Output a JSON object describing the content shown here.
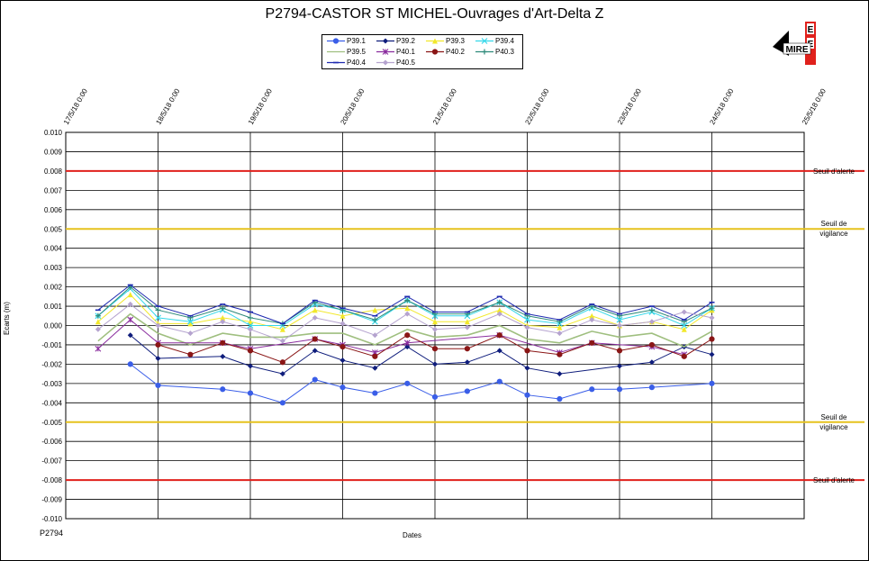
{
  "chart_data": {
    "type": "line",
    "title": "P2794-CASTOR ST MICHEL-Ouvrages d'Art-Delta Z",
    "xlabel": "Dates",
    "ylabel": "Ecarts (m)",
    "footer": "P2794",
    "ylim": [
      -0.01,
      0.01
    ],
    "y_ticks": [
      "0.010",
      "0.009",
      "0.008",
      "0.007",
      "0.006",
      "0.005",
      "0.004",
      "0.003",
      "0.002",
      "0.001",
      "0.000",
      "-0.001",
      "-0.002",
      "-0.003",
      "-0.004",
      "-0.005",
      "-0.006",
      "-0.007",
      "-0.008",
      "-0.009",
      "-0.010"
    ],
    "x_ticks": [
      "17/5/18 0:00",
      "18/5/18 0:00",
      "19/5/18 0:00",
      "20/5/18 0:00",
      "21/5/18 0:00",
      "22/5/18 0:00",
      "23/5/18 0:00",
      "24/5/18 0:00",
      "25/5/18 0:00"
    ],
    "xlim_days": [
      17,
      25
    ],
    "grid": true,
    "thresholds": [
      {
        "label_1": "Seuil d'alerte",
        "label_2": "",
        "value": 0.008,
        "color": "#e0211c"
      },
      {
        "label_1": "Seuil de",
        "label_2": "vigilance",
        "value": 0.005,
        "color": "#e6c21e"
      },
      {
        "label_1": "Seuil de",
        "label_2": "vigilance",
        "value": -0.005,
        "color": "#e6c21e"
      },
      {
        "label_1": "Seuil d'alerte",
        "label_2": "",
        "value": -0.008,
        "color": "#e0211c"
      }
    ],
    "times": [
      17.35,
      17.7,
      18.0,
      18.35,
      18.7,
      19.0,
      19.35,
      19.7,
      20.0,
      20.35,
      20.7,
      21.0,
      21.35,
      21.7,
      22.0,
      22.35,
      22.7,
      23.0,
      23.35,
      23.7,
      24.0
    ],
    "series": [
      {
        "name": "P39.1",
        "color": "#3a5ee8",
        "marker": "circle",
        "values": [
          null,
          -0.002,
          -0.0031,
          null,
          -0.0033,
          -0.0035,
          -0.004,
          -0.0028,
          -0.0032,
          -0.0035,
          -0.003,
          -0.0037,
          -0.0034,
          -0.0029,
          -0.0036,
          -0.0038,
          -0.0033,
          -0.0033,
          -0.0032,
          null,
          -0.003
        ]
      },
      {
        "name": "P39.2",
        "color": "#0f1d7c",
        "marker": "diamond",
        "values": [
          null,
          -0.0005,
          -0.0017,
          null,
          -0.0016,
          -0.0021,
          -0.0025,
          -0.0013,
          -0.0018,
          -0.0022,
          -0.0011,
          -0.002,
          -0.0019,
          -0.0013,
          -0.0022,
          -0.0025,
          null,
          -0.0021,
          -0.0019,
          -0.0011,
          -0.0015
        ]
      },
      {
        "name": "P39.3",
        "color": "#f2e82a",
        "marker": "triangle",
        "values": [
          0.0002,
          0.0016,
          0.0001,
          0.0001,
          0.0004,
          0.0002,
          -0.0002,
          0.0008,
          0.0005,
          0.0008,
          0.0009,
          0.0002,
          0.0002,
          0.0008,
          0.0,
          -0.0001,
          0.0005,
          0.0,
          0.0002,
          -0.0002,
          0.0008
        ]
      },
      {
        "name": "P39.4",
        "color": "#35d8ea",
        "marker": "x",
        "values": [
          0.0005,
          0.0019,
          0.0004,
          0.0002,
          0.0008,
          0.0,
          0.0,
          0.0011,
          0.0008,
          0.0002,
          0.0013,
          0.0005,
          0.0005,
          0.0012,
          0.0003,
          0.0001,
          0.0009,
          0.0003,
          0.0007,
          0.0,
          0.0009
        ]
      },
      {
        "name": "P39.5",
        "color": "#9fbf7f",
        "marker": "none",
        "values": [
          -0.0008,
          0.0006,
          -0.0004,
          -0.001,
          -0.0004,
          -0.0006,
          -0.0006,
          -0.0004,
          -0.0004,
          -0.001,
          -0.0002,
          -0.0006,
          -0.0005,
          0.0,
          -0.0007,
          -0.0009,
          -0.0003,
          -0.0006,
          -0.0004,
          -0.0011,
          -0.0003
        ]
      },
      {
        "name": "P40.1",
        "color": "#8a2d9e",
        "marker": "star",
        "values": [
          -0.0012,
          0.0003,
          -0.0009,
          null,
          -0.0009,
          -0.0012,
          null,
          -0.0007,
          -0.001,
          -0.0014,
          -0.0009,
          null,
          null,
          -0.0005,
          null,
          -0.0014,
          -0.0009,
          null,
          -0.0011,
          -0.0015,
          null
        ]
      },
      {
        "name": "P40.2",
        "color": "#8a1616",
        "marker": "circle",
        "values": [
          null,
          null,
          -0.001,
          -0.0015,
          -0.0009,
          -0.0013,
          -0.0019,
          -0.0007,
          -0.0011,
          -0.0016,
          -0.0005,
          -0.0012,
          -0.0012,
          -0.0005,
          -0.0013,
          -0.0015,
          -0.0009,
          -0.0013,
          -0.001,
          -0.0016,
          -0.0007
        ]
      },
      {
        "name": "P40.3",
        "color": "#2e8a7a",
        "marker": "plus",
        "values": [
          0.0005,
          0.002,
          0.0008,
          0.0004,
          0.0009,
          0.0004,
          0.0001,
          0.0012,
          0.0008,
          0.0003,
          0.0013,
          0.0006,
          0.0006,
          0.0012,
          0.0005,
          0.0002,
          0.001,
          0.0005,
          0.0008,
          0.0002,
          0.0009
        ]
      },
      {
        "name": "P40.4",
        "color": "#1e2ab0",
        "marker": "dash",
        "values": [
          0.0008,
          0.0021,
          0.001,
          0.0005,
          0.0011,
          0.0007,
          0.0001,
          0.0013,
          0.0009,
          0.0005,
          0.0015,
          0.0007,
          0.0007,
          0.0015,
          0.0006,
          0.0003,
          0.0011,
          0.0006,
          0.001,
          0.0003,
          0.0012
        ]
      },
      {
        "name": "P40.5",
        "color": "#b5a3cf",
        "marker": "diamond",
        "values": [
          -0.0002,
          0.0011,
          0.0,
          -0.0004,
          0.0002,
          -0.0002,
          -0.0008,
          0.0004,
          0.0001,
          -0.0005,
          0.0006,
          -0.0002,
          -0.0001,
          0.0006,
          -0.0001,
          -0.0004,
          0.0003,
          0.0,
          0.0002,
          0.0007,
          0.0004
        ]
      }
    ]
  },
  "logo": {
    "text": "MIRE",
    "letter": "E"
  }
}
